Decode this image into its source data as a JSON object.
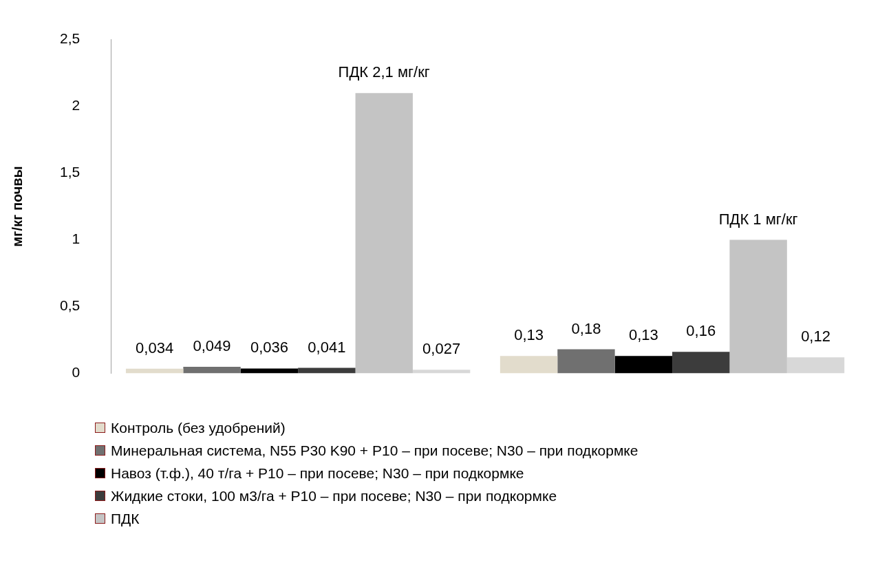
{
  "chart_data": {
    "type": "bar",
    "ylabel": "мг/кг почвы",
    "categories": [
      null,
      null
    ],
    "series": [
      {
        "name": "Контроль (без удобрений)",
        "color": "#e2dccc",
        "values": [
          0.034,
          0.13
        ],
        "value_labels": [
          "0,034",
          "0,13"
        ]
      },
      {
        "name": "Минеральная система, N55 P30 K90 + P10 – при посеве; N30 – при подкормке",
        "color": "#707070",
        "values": [
          0.049,
          0.18
        ],
        "value_labels": [
          "0,049",
          "0,18"
        ]
      },
      {
        "name": "Навоз (т.ф.), 40 т/га + P10 – при посеве; N30 – при подкормке",
        "color": "#000000",
        "values": [
          0.036,
          0.13
        ],
        "value_labels": [
          "0,036",
          "0,13"
        ]
      },
      {
        "name": "Жидкие стоки, 100 м3/га + P10 – при посеве; N30 – при подкормке",
        "color": "#3c3c3c",
        "values": [
          0.041,
          0.16
        ],
        "value_labels": [
          "0,041",
          "0,16"
        ]
      },
      {
        "name": "ПДК",
        "color": "#c4c4c4",
        "values": [
          2.1,
          1
        ],
        "value_labels": [
          "ПДК 2,1 мг/кг",
          "ПДК 1 мг/кг"
        ]
      },
      {
        "color": "#d8d8d8",
        "values": [
          0.027,
          0.12
        ],
        "value_labels": [
          "0,027",
          "0,12"
        ]
      }
    ],
    "ylim": [
      0,
      2.5
    ],
    "yticks": [
      0,
      {
        "value": 0.5,
        "label": "0,5"
      },
      1,
      {
        "value": 1.5,
        "label": "1,5"
      },
      2,
      {
        "value": 2.5,
        "label": "2,5"
      }
    ],
    "grid": false,
    "legend": "bottom"
  }
}
